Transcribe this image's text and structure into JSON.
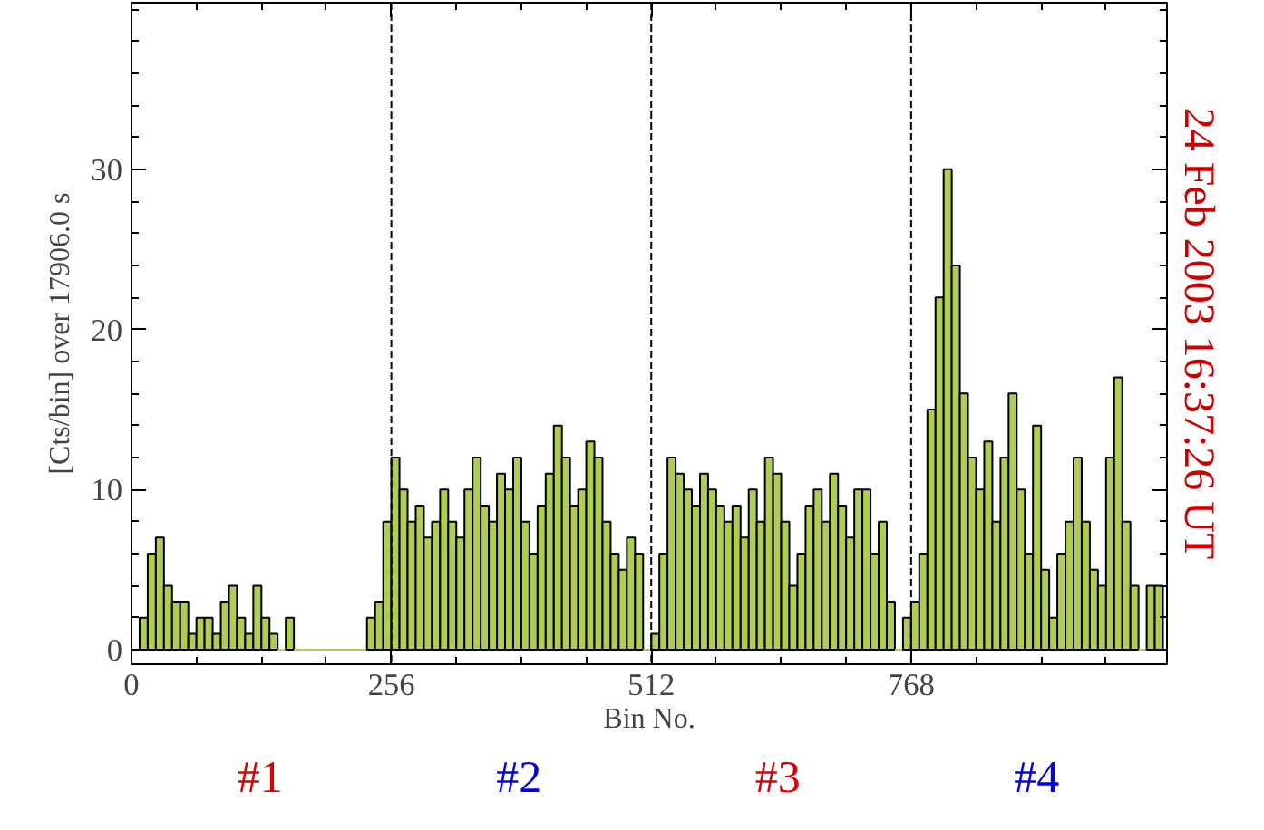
{
  "chart_data": {
    "type": "histogram",
    "xlabel": "Bin No.",
    "ylabel": "[Cts/bin] over 17906.0 s",
    "bins": [
      0,
      8,
      16,
      24,
      32,
      40,
      48,
      56,
      64,
      72,
      80,
      88,
      96,
      104,
      112,
      120,
      128,
      136,
      144,
      152,
      160,
      168,
      176,
      184,
      192,
      200,
      208,
      216,
      224,
      232,
      240,
      248,
      256,
      264,
      272,
      280,
      288,
      296,
      304,
      312,
      320,
      328,
      336,
      344,
      352,
      360,
      368,
      376,
      384,
      392,
      400,
      408,
      416,
      424,
      432,
      440,
      448,
      456,
      464,
      472,
      480,
      488,
      496,
      504,
      512,
      520,
      528,
      536,
      544,
      552,
      560,
      568,
      576,
      584,
      592,
      600,
      608,
      616,
      624,
      632,
      640,
      648,
      656,
      664,
      672,
      680,
      688,
      696,
      704,
      712,
      720,
      728,
      736,
      744,
      752,
      760,
      768,
      776,
      784,
      792,
      800,
      808,
      816,
      824,
      832,
      840,
      848,
      856,
      864,
      872,
      880,
      888,
      896,
      904,
      912,
      920,
      928,
      936,
      944,
      952,
      960,
      968,
      976,
      984,
      992,
      1000,
      1008,
      1016
    ],
    "values": [
      0,
      2,
      6,
      7,
      4,
      3,
      3,
      1,
      2,
      2,
      1,
      3,
      4,
      2,
      1,
      4,
      2,
      1,
      0,
      2,
      0,
      0,
      0,
      0,
      0,
      0,
      0,
      0,
      0,
      2,
      3,
      8,
      12,
      10,
      8,
      9,
      7,
      8,
      10,
      8,
      7,
      10,
      12,
      9,
      8,
      11,
      10,
      12,
      8,
      6,
      9,
      11,
      14,
      12,
      9,
      10,
      13,
      12,
      8,
      6,
      5,
      7,
      6,
      0,
      1,
      6,
      12,
      11,
      10,
      9,
      11,
      10,
      9,
      8,
      9,
      7,
      10,
      8,
      12,
      11,
      8,
      4,
      6,
      9,
      10,
      8,
      11,
      9,
      7,
      10,
      10,
      6,
      8,
      3,
      0,
      2,
      3,
      6,
      15,
      22,
      30,
      24,
      16,
      12,
      10,
      13,
      8,
      12,
      16,
      10,
      6,
      14,
      5,
      2,
      6,
      8,
      12,
      8,
      5,
      4,
      12,
      17,
      8,
      4,
      0,
      4,
      4
    ],
    "color": "#b0cc55",
    "xlim": [
      0,
      1020
    ],
    "ylim": [
      -0.9,
      40.4
    ],
    "xticks": [
      0,
      256,
      512,
      768
    ],
    "yticks": [
      0,
      10,
      20,
      30
    ],
    "ref_lines": [
      {
        "axis": "x",
        "value": 256,
        "line_style": "dashed",
        "color": "#000000"
      },
      {
        "axis": "x",
        "value": 512,
        "line_style": "dashed",
        "color": "#000000"
      },
      {
        "axis": "x",
        "value": 768,
        "line_style": "dashed",
        "color": "#000000"
      }
    ],
    "annotations": [
      "24 Feb 2003 16:37:26 UT",
      "#1",
      "#2",
      "#3",
      "#4"
    ],
    "grid": false
  }
}
